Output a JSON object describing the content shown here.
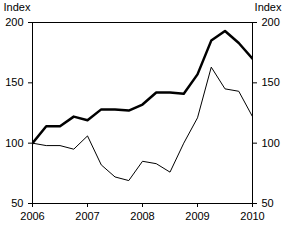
{
  "chart_data": {
    "type": "line",
    "y_label": "Index",
    "x": [
      2006,
      2006.25,
      2006.5,
      2006.75,
      2007,
      2007.25,
      2007.5,
      2007.75,
      2008,
      2008.25,
      2008.5,
      2008.75,
      2009,
      2009.25,
      2009.5,
      2009.75,
      2010
    ],
    "series": [
      {
        "color": "#000000",
        "line_style": "solid",
        "values": [
          100,
          114,
          114,
          122,
          119,
          128,
          128,
          127,
          132,
          142,
          142,
          141,
          157,
          185,
          193,
          183,
          170
        ]
      },
      {
        "color": "#000000",
        "line_style": "solid",
        "values": [
          100,
          98,
          98,
          95,
          106,
          82,
          72,
          69,
          85,
          83,
          76,
          100,
          121,
          163,
          145,
          143,
          122
        ]
      }
    ],
    "xlim": [
      2006,
      2010
    ],
    "xticks": [
      2006,
      2007,
      2008,
      2009,
      2010
    ],
    "ylim": [
      50,
      200
    ],
    "yticks": [
      50,
      100,
      150,
      200
    ],
    "grid": false
  }
}
